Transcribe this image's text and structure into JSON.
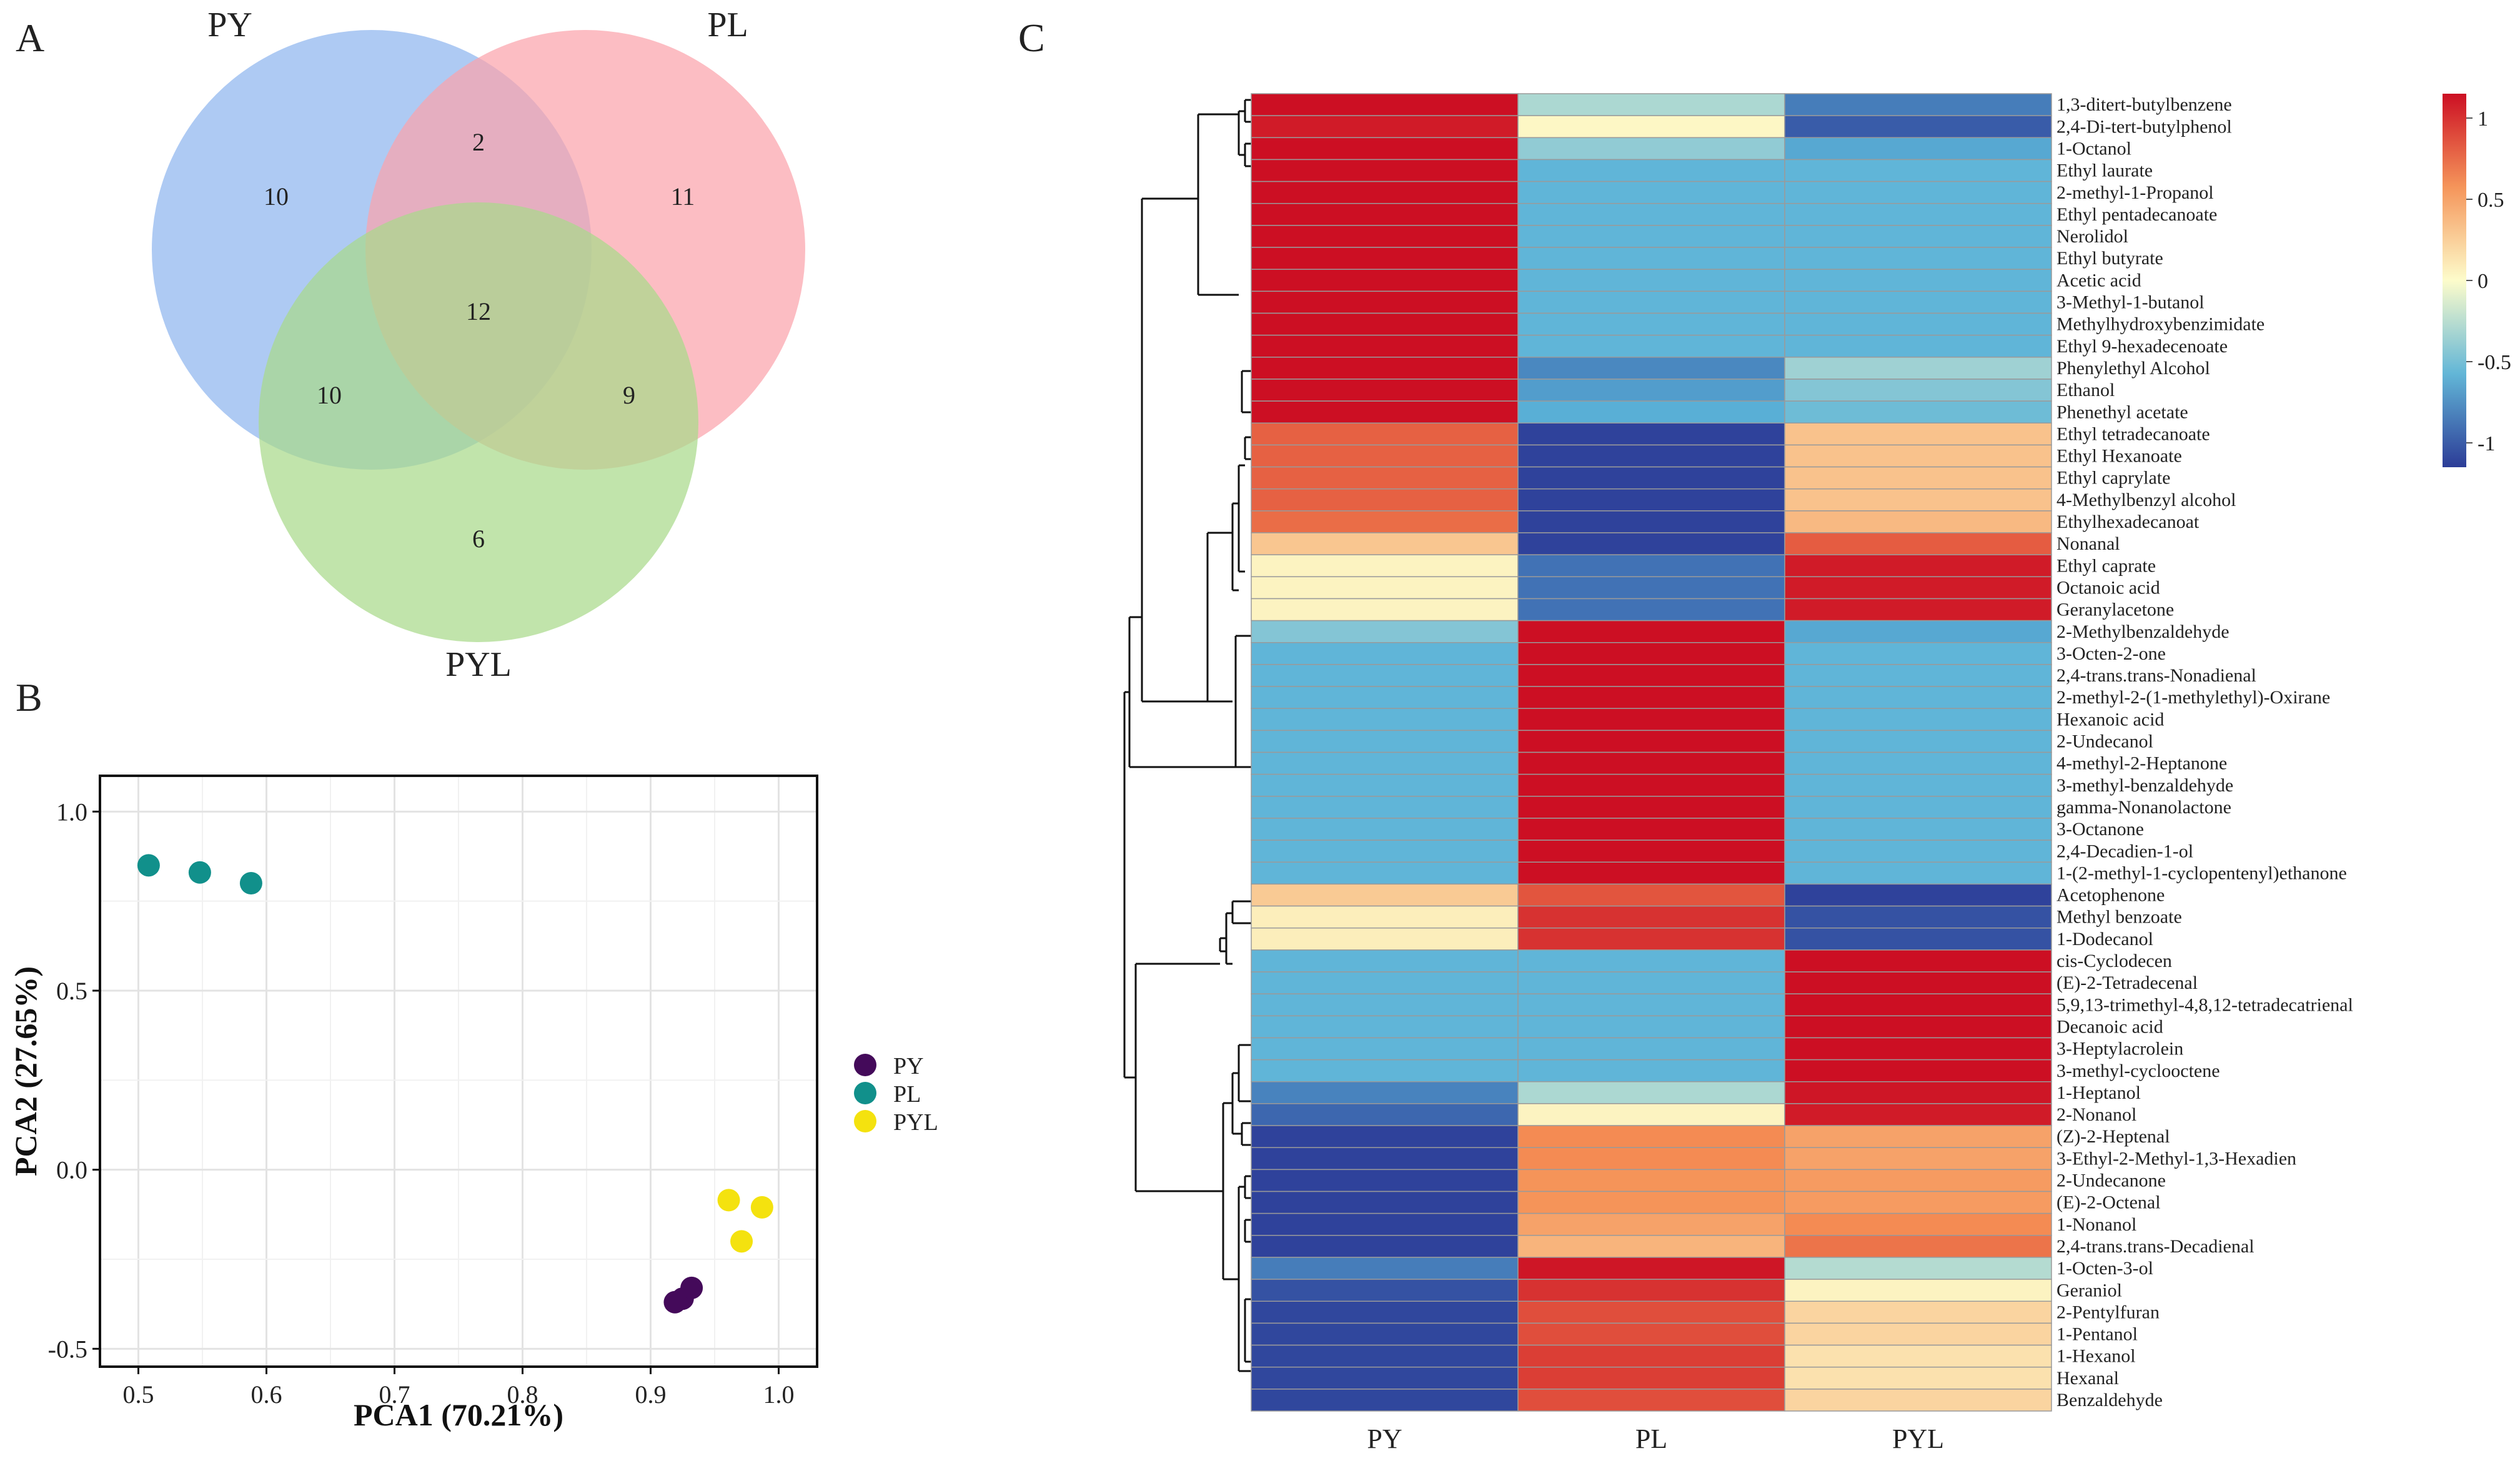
{
  "panels": {
    "a": "A",
    "b": "B",
    "c": "C"
  },
  "colors": {
    "venn_py": "#8fb5ee",
    "venn_pl": "#fba3ac",
    "venn_pyl": "#a9d98b",
    "pca_py": "#440a5a",
    "pca_pl": "#11908b",
    "pca_pyl": "#f4e20f",
    "heat_low": "#2c3c97",
    "heat_mid": "#fdfccb",
    "heat_high": "#cc0f23"
  },
  "chart_data": [
    {
      "type": "venn",
      "sets": [
        "PY",
        "PL",
        "PYL"
      ],
      "regions": [
        {
          "label": "PY only",
          "value": 10
        },
        {
          "label": "PL only",
          "value": 11
        },
        {
          "label": "PYL only",
          "value": 6
        },
        {
          "label": "PY & PL",
          "value": 2
        },
        {
          "label": "PY & PYL",
          "value": 10
        },
        {
          "label": "PL & PYL",
          "value": 9
        },
        {
          "label": "PY & PL & PYL",
          "value": 12
        }
      ]
    },
    {
      "type": "scatter",
      "xlabel": "PCA1 (70.21%)",
      "ylabel": "PCA2 (27.65%)",
      "xlim": [
        0.47,
        1.03
      ],
      "ylim": [
        -0.55,
        1.1
      ],
      "xticks": [
        0.5,
        0.6,
        0.7,
        0.8,
        0.9,
        1.0
      ],
      "xtick_labels": [
        "0.5",
        "0.6",
        "0.7",
        "0.8",
        "0.9",
        "1.0"
      ],
      "yticks": [
        -0.5,
        0.0,
        0.5,
        1.0
      ],
      "ytick_labels": [
        "-0.5",
        "0.0",
        "0.5",
        "1.0"
      ],
      "grid": true,
      "legend_position": "right",
      "series": [
        {
          "name": "PY",
          "color": "#440a5a",
          "x": [
            0.919,
            0.925,
            0.932
          ],
          "y": [
            -0.37,
            -0.36,
            -0.33
          ]
        },
        {
          "name": "PL",
          "color": "#11908b",
          "x": [
            0.508,
            0.548,
            0.588
          ],
          "y": [
            0.85,
            0.83,
            0.8
          ]
        },
        {
          "name": "PYL",
          "color": "#f4e20f",
          "x": [
            0.961,
            0.971,
            0.987
          ],
          "y": [
            -0.085,
            -0.2,
            -0.105
          ]
        }
      ]
    },
    {
      "type": "heatmap",
      "columns": [
        "PY",
        "PL",
        "PYL"
      ],
      "legend_ticks": [
        1,
        0.5,
        0,
        -0.5,
        -1
      ],
      "legend_tick_labels": [
        "1",
        "0.5",
        "0",
        "-0.5",
        "-1"
      ],
      "value_range": [
        -1.15,
        1.15
      ],
      "rows": [
        {
          "name": "1,3-ditert-butylbenzene",
          "values": [
            1.15,
            -0.3,
            -0.85
          ]
        },
        {
          "name": "2,4-Di-tert-butylphenol",
          "values": [
            1.1,
            0.03,
            -1.0
          ]
        },
        {
          "name": "1-Octanol",
          "values": [
            1.15,
            -0.4,
            -0.65
          ]
        },
        {
          "name": "Ethyl laurate",
          "values": [
            1.15,
            -0.58,
            -0.58
          ]
        },
        {
          "name": "2-methyl-1-Propanol",
          "values": [
            1.15,
            -0.58,
            -0.58
          ]
        },
        {
          "name": "Ethyl pentadecanoate",
          "values": [
            1.15,
            -0.58,
            -0.58
          ]
        },
        {
          "name": "Nerolidol",
          "values": [
            1.15,
            -0.58,
            -0.58
          ]
        },
        {
          "name": "Ethyl butyrate",
          "values": [
            1.15,
            -0.58,
            -0.58
          ]
        },
        {
          "name": "Acetic acid",
          "values": [
            1.15,
            -0.58,
            -0.58
          ]
        },
        {
          "name": "3-Methyl-1-butanol",
          "values": [
            1.15,
            -0.58,
            -0.58
          ]
        },
        {
          "name": "Methylhydroxybenzimidate",
          "values": [
            1.15,
            -0.58,
            -0.58
          ]
        },
        {
          "name": "Ethyl 9-hexadecenoate",
          "values": [
            1.15,
            -0.58,
            -0.58
          ]
        },
        {
          "name": "Phenylethyl Alcohol",
          "values": [
            1.15,
            -0.8,
            -0.35
          ]
        },
        {
          "name": "Ethanol",
          "values": [
            1.15,
            -0.7,
            -0.45
          ]
        },
        {
          "name": "Phenethyl acetate",
          "values": [
            1.15,
            -0.62,
            -0.53
          ]
        },
        {
          "name": "Ethyl tetradecanoate",
          "values": [
            0.8,
            -1.12,
            0.32
          ]
        },
        {
          "name": "Ethyl Hexanoate",
          "values": [
            0.8,
            -1.12,
            0.32
          ]
        },
        {
          "name": "Ethyl caprylate",
          "values": [
            0.8,
            -1.12,
            0.32
          ]
        },
        {
          "name": "4-Methylbenzyl alcohol",
          "values": [
            0.8,
            -1.12,
            0.32
          ]
        },
        {
          "name": "Ethylhexadecanoat",
          "values": [
            0.75,
            -1.12,
            0.37
          ]
        },
        {
          "name": "Nonanal",
          "values": [
            0.3,
            -1.12,
            0.82
          ]
        },
        {
          "name": "Ethyl caprate",
          "values": [
            0.05,
            -0.9,
            1.1
          ]
        },
        {
          "name": "Octanoic acid",
          "values": [
            0.05,
            -0.9,
            1.1
          ]
        },
        {
          "name": "Geranylacetone",
          "values": [
            0.05,
            -0.9,
            1.1
          ]
        },
        {
          "name": "2-Methylbenzaldehyde",
          "values": [
            -0.45,
            1.15,
            -0.65
          ]
        },
        {
          "name": "3-Octen-2-one",
          "values": [
            -0.58,
            1.15,
            -0.58
          ]
        },
        {
          "name": "2,4-trans.trans-Nonadienal",
          "values": [
            -0.58,
            1.15,
            -0.58
          ]
        },
        {
          "name": "2-methyl-2-(1-methylethyl)-Oxirane",
          "values": [
            -0.58,
            1.15,
            -0.58
          ]
        },
        {
          "name": "Hexanoic acid",
          "values": [
            -0.58,
            1.15,
            -0.58
          ]
        },
        {
          "name": "2-Undecanol",
          "values": [
            -0.58,
            1.15,
            -0.58
          ]
        },
        {
          "name": "4-methyl-2-Heptanone",
          "values": [
            -0.58,
            1.15,
            -0.58
          ]
        },
        {
          "name": "3-methyl-benzaldehyde",
          "values": [
            -0.58,
            1.15,
            -0.58
          ]
        },
        {
          "name": "gamma-Nonanolactone",
          "values": [
            -0.58,
            1.15,
            -0.58
          ]
        },
        {
          "name": "3-Octanone",
          "values": [
            -0.58,
            1.15,
            -0.58
          ]
        },
        {
          "name": "2,4-Decadien-1-ol",
          "values": [
            -0.58,
            1.15,
            -0.58
          ]
        },
        {
          "name": "1-(2-methyl-1-cyclopentenyl)ethanone",
          "values": [
            -0.58,
            1.15,
            -0.58
          ]
        },
        {
          "name": "Acetophenone",
          "values": [
            0.28,
            0.85,
            -1.12
          ]
        },
        {
          "name": "Methyl benzoate",
          "values": [
            0.08,
            1.0,
            -1.05
          ]
        },
        {
          "name": "1-Dodecanol",
          "values": [
            0.08,
            1.0,
            -1.05
          ]
        },
        {
          "name": "cis-Cyclodecen",
          "values": [
            -0.58,
            -0.58,
            1.15
          ]
        },
        {
          "name": "(E)-2-Tetradecenal",
          "values": [
            -0.58,
            -0.58,
            1.15
          ]
        },
        {
          "name": "5,9,13-trimethyl-4,8,12-tetradecatrienal",
          "values": [
            -0.58,
            -0.58,
            1.15
          ]
        },
        {
          "name": "Decanoic acid",
          "values": [
            -0.58,
            -0.58,
            1.15
          ]
        },
        {
          "name": "3-Heptylacrolein",
          "values": [
            -0.58,
            -0.58,
            1.15
          ]
        },
        {
          "name": "3-methyl-cyclooctene",
          "values": [
            -0.58,
            -0.58,
            1.15
          ]
        },
        {
          "name": "1-Heptanol",
          "values": [
            -0.82,
            -0.3,
            1.12
          ]
        },
        {
          "name": "2-Nonanol",
          "values": [
            -0.95,
            0.05,
            1.1
          ]
        },
        {
          "name": "(Z)-2-Heptenal",
          "values": [
            -1.12,
            0.62,
            0.5
          ]
        },
        {
          "name": "3-Ethyl-2-Methyl-1,3-Hexadien",
          "values": [
            -1.12,
            0.62,
            0.5
          ]
        },
        {
          "name": "2-Undecanone",
          "values": [
            -1.12,
            0.58,
            0.54
          ]
        },
        {
          "name": "(E)-2-Octenal",
          "values": [
            -1.12,
            0.58,
            0.54
          ]
        },
        {
          "name": "1-Nonanol",
          "values": [
            -1.12,
            0.5,
            0.62
          ]
        },
        {
          "name": "2,4-trans.trans-Decadienal",
          "values": [
            -1.12,
            0.4,
            0.72
          ]
        },
        {
          "name": "1-Octen-3-ol",
          "values": [
            -0.85,
            1.12,
            -0.27
          ]
        },
        {
          "name": "Geraniol",
          "values": [
            -1.05,
            1.0,
            0.05
          ]
        },
        {
          "name": "2-Pentylfuran",
          "values": [
            -1.1,
            0.88,
            0.22
          ]
        },
        {
          "name": "1-Pentanol",
          "values": [
            -1.1,
            0.88,
            0.22
          ]
        },
        {
          "name": "1-Hexanol",
          "values": [
            -1.1,
            0.95,
            0.15
          ]
        },
        {
          "name": "Hexanal",
          "values": [
            -1.1,
            0.95,
            0.15
          ]
        },
        {
          "name": "Benzaldehyde",
          "values": [
            -1.1,
            0.88,
            0.22
          ]
        }
      ]
    }
  ]
}
